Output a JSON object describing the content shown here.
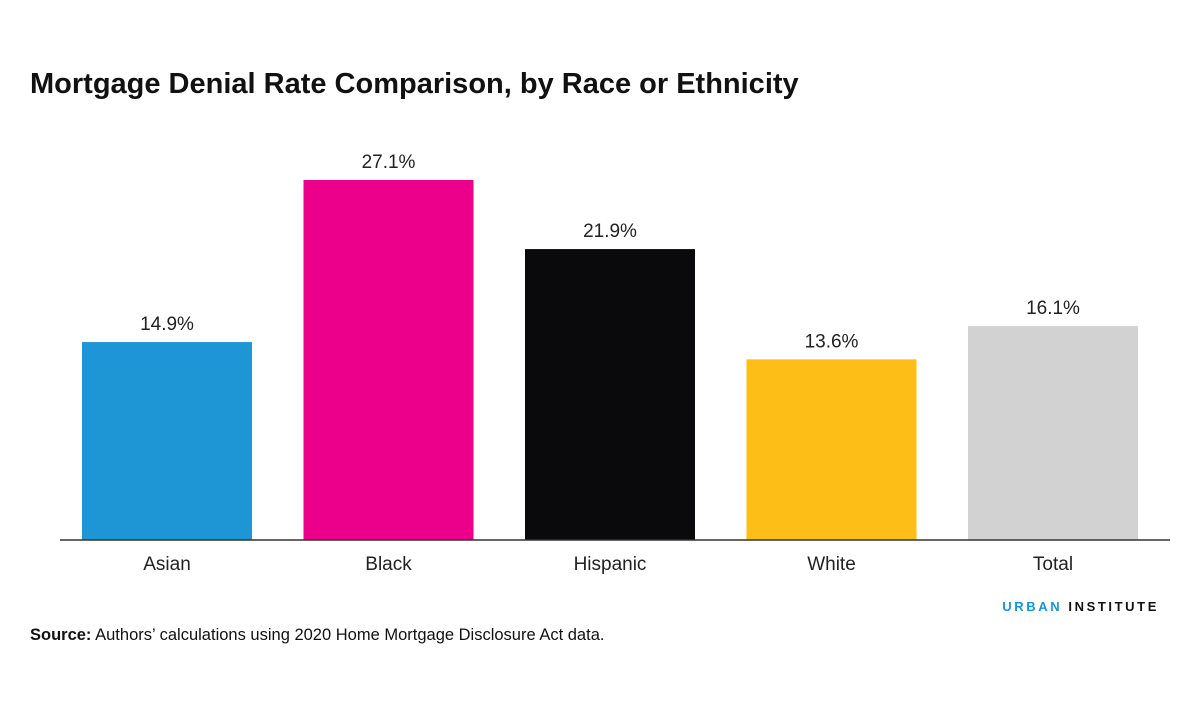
{
  "chart_data": {
    "type": "bar",
    "title": "Mortgage Denial Rate Comparison, by Race or Ethnicity",
    "categories": [
      "Asian",
      "Black",
      "Hispanic",
      "White",
      "Total"
    ],
    "values": [
      14.9,
      27.1,
      21.9,
      13.6,
      16.1
    ],
    "value_labels": [
      "14.9%",
      "27.1%",
      "21.9%",
      "13.6%",
      "16.1%"
    ],
    "colors": [
      "#1e96d6",
      "#ec008b",
      "#0a0a0c",
      "#fdbe17",
      "#d2d2d2"
    ],
    "ylim": [
      0,
      30
    ],
    "xlabel": "",
    "ylabel": "",
    "grid": false,
    "legend": "none"
  },
  "footer": {
    "brand_first": "URBAN",
    "brand_second": "INSTITUTE",
    "source_label": "Source:",
    "source_text": "Authors’ calculations using 2020 Home Mortgage Disclosure Act data."
  }
}
